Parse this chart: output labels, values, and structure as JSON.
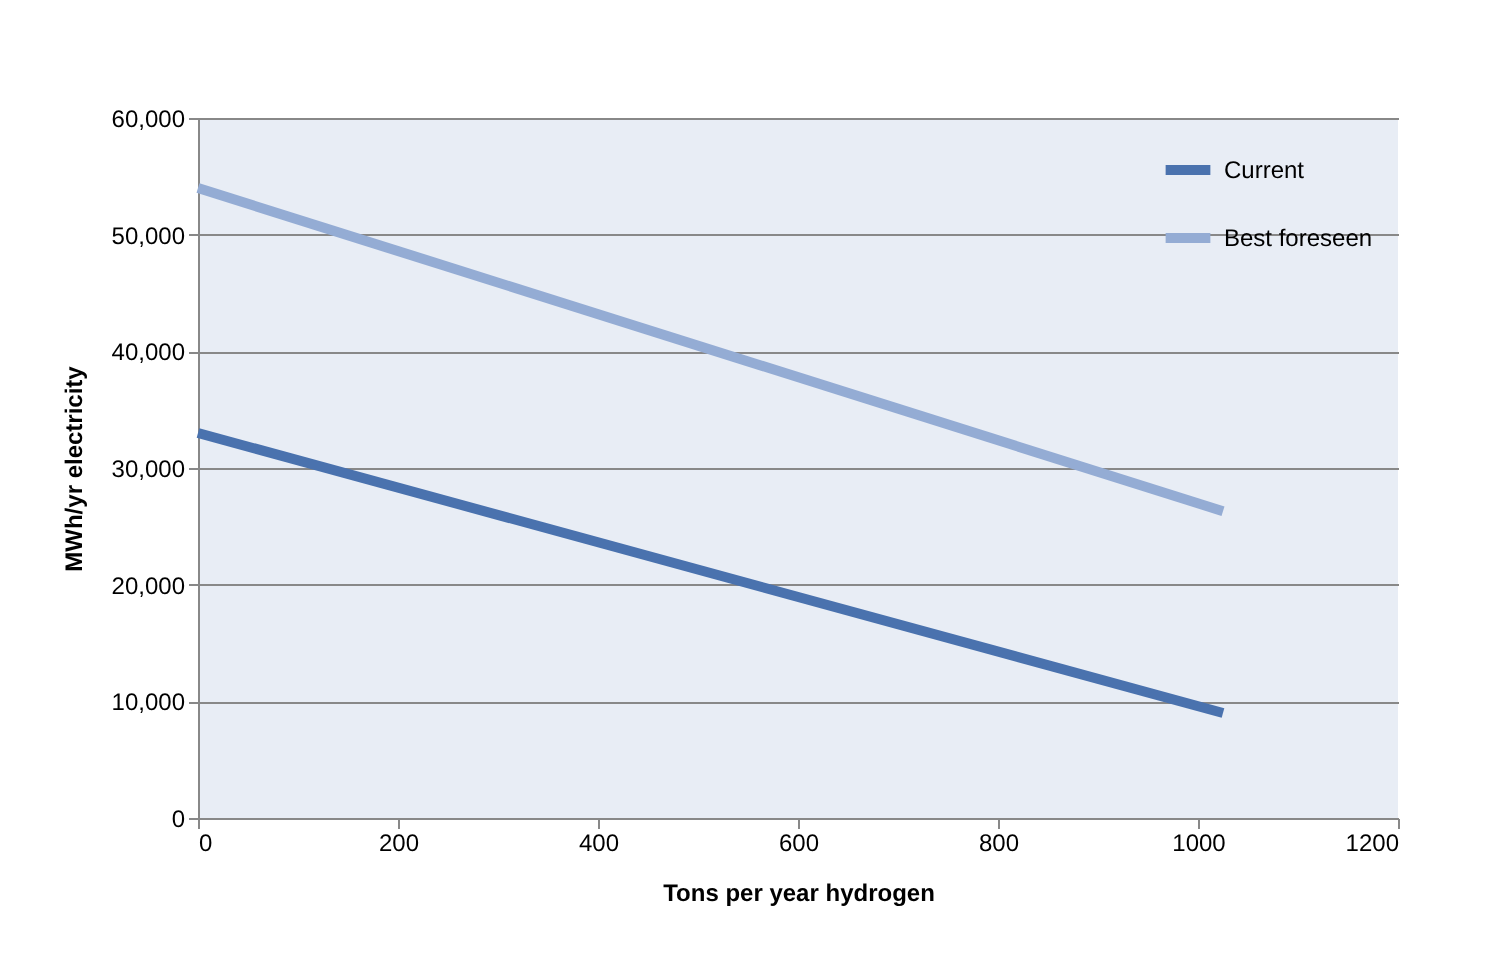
{
  "chart_data": {
    "type": "line",
    "xlabel": "Tons per year hydrogen",
    "ylabel": "MWh/yr electricity",
    "x": [
      0,
      1025
    ],
    "series": [
      {
        "name": "Current",
        "color": "#4a72ae",
        "values": [
          33000,
          9000
        ]
      },
      {
        "name": "Best foreseen",
        "color": "#94acd4",
        "values": [
          54000,
          26300
        ]
      }
    ],
    "xlim": [
      0,
      1200
    ],
    "xticks": [
      0,
      200,
      400,
      600,
      800,
      1000,
      1200
    ],
    "ylim": [
      0,
      60000
    ],
    "yticks": [
      {
        "value": 0,
        "label": "0"
      },
      {
        "value": 10000,
        "label": "10,000"
      },
      {
        "value": 20000,
        "label": "20,000"
      },
      {
        "value": 30000,
        "label": "30,000"
      },
      {
        "value": 40000,
        "label": "40,000"
      },
      {
        "value": 50000,
        "label": "50,000"
      },
      {
        "value": 60000,
        "label": "60,000"
      }
    ],
    "grid": "y",
    "legend": "top right",
    "marker": "none",
    "line_style": "solid"
  }
}
